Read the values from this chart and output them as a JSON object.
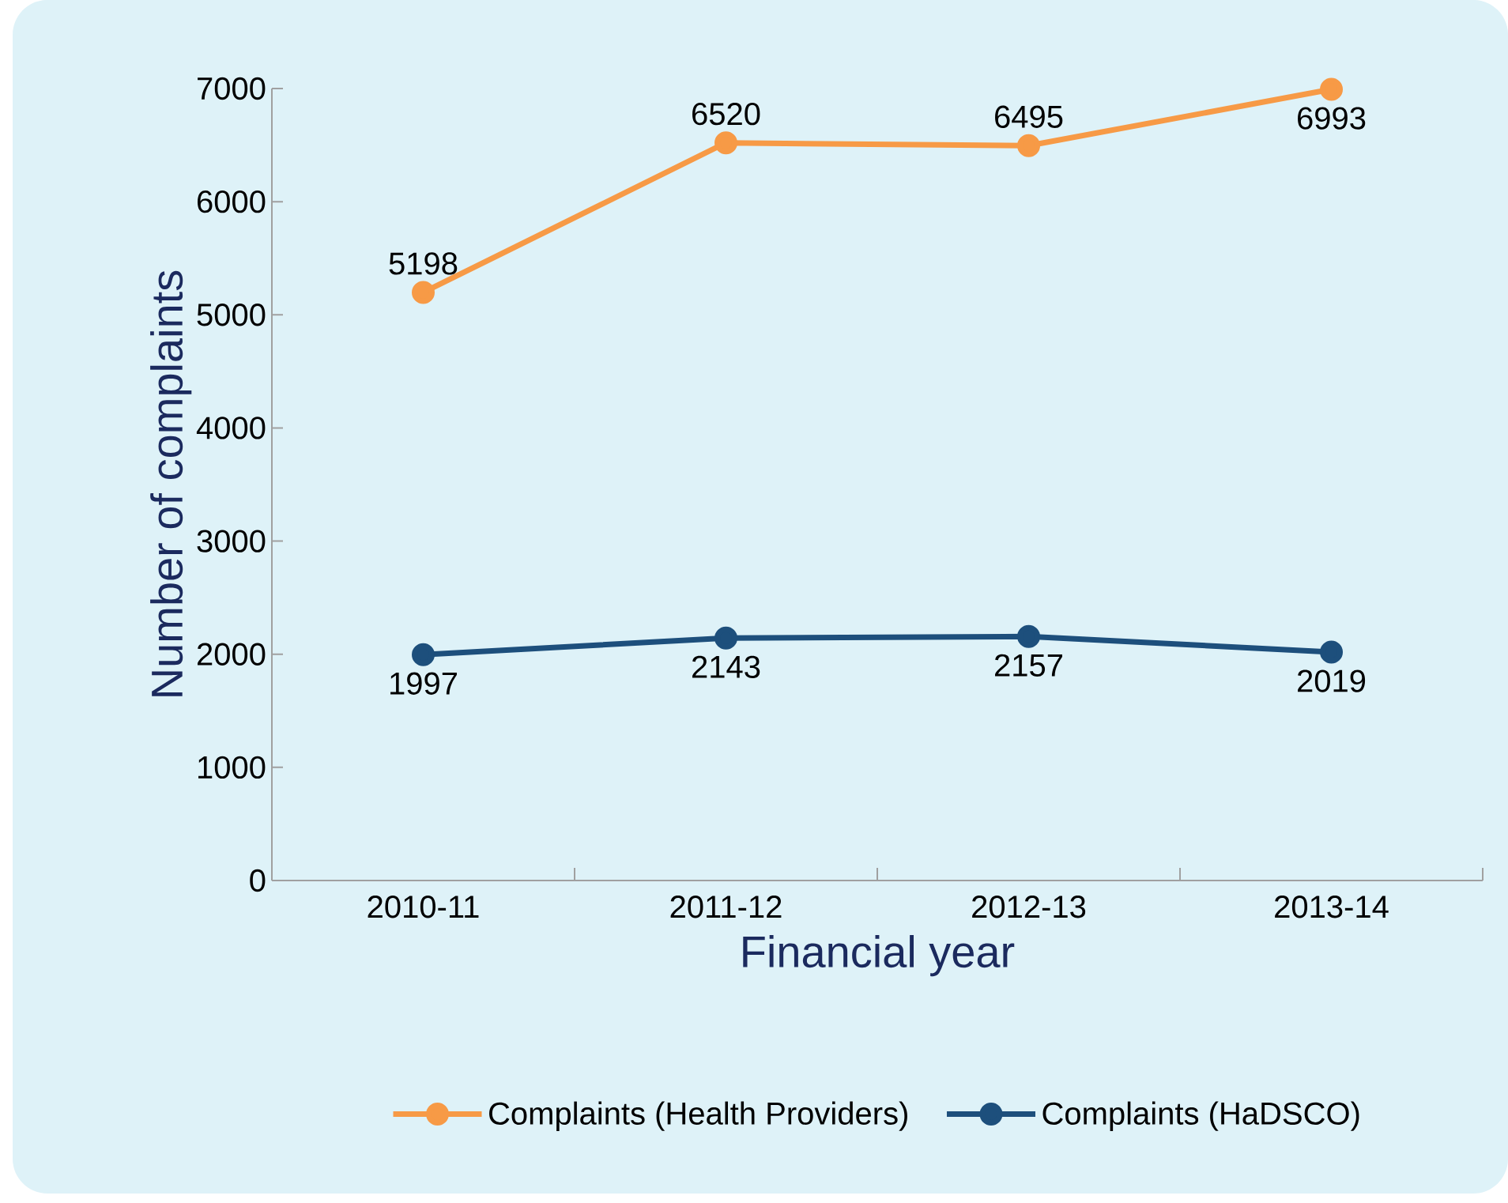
{
  "chart_data": {
    "type": "line",
    "xlabel": "Financial year",
    "ylabel": "Number of complaints",
    "categories": [
      "2010-11",
      "2011-12",
      "2012-13",
      "2013-14"
    ],
    "series": [
      {
        "name": "Complaints (Health Providers)",
        "color": "#f79a46",
        "values": [
          5198,
          6520,
          6495,
          6993
        ]
      },
      {
        "name": "Complaints (HaDSCO)",
        "color": "#1d4f7c",
        "values": [
          1997,
          2143,
          2157,
          2019
        ]
      }
    ],
    "ylim": [
      0,
      7000
    ],
    "yticks": [
      0,
      1000,
      2000,
      3000,
      4000,
      5000,
      6000,
      7000
    ],
    "data_labels": true,
    "legend": "bottom",
    "marker": "circle",
    "line_style": "solid",
    "grid": false
  }
}
